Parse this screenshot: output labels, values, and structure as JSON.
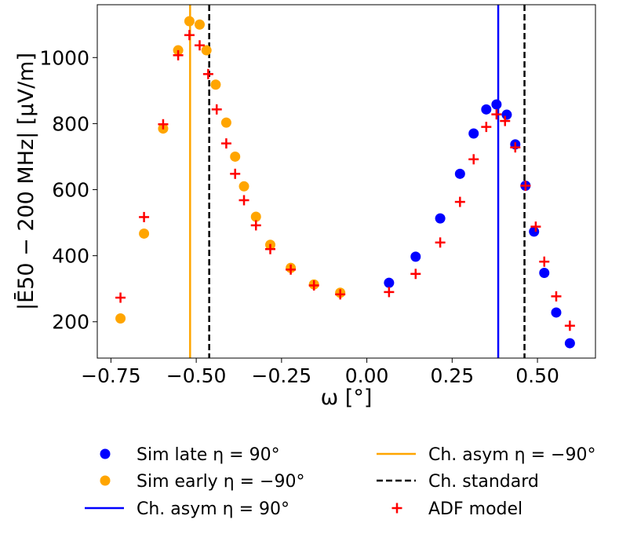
{
  "chart_data": {
    "type": "scatter",
    "xlabel": "ω [°]",
    "ylabel": "|Ē50 − 200 MHz| [µV/m]",
    "xlim": [
      -0.79,
      0.67
    ],
    "ylim": [
      90,
      1160
    ],
    "xticks": [
      -0.75,
      -0.5,
      -0.25,
      0.0,
      0.25,
      0.5
    ],
    "xtick_labels": [
      "−0.75",
      "−0.50",
      "−0.25",
      "0.00",
      "0.25",
      "0.50"
    ],
    "yticks": [
      200,
      400,
      600,
      800,
      1000
    ],
    "ytick_labels": [
      "200",
      "400",
      "600",
      "800",
      "1000"
    ],
    "legend_position": "bottom (below plot), two columns",
    "series": [
      {
        "name": "Sim late η = 90°",
        "legend_prefix": "Sim late ",
        "legend_eq": "η = 90°",
        "kind": "scatter-circle",
        "color": "#0000ff",
        "x": [
          0.065,
          0.143,
          0.215,
          0.273,
          0.313,
          0.35,
          0.38,
          0.41,
          0.435,
          0.465,
          0.49,
          0.52,
          0.555,
          0.595
        ],
        "y": [
          318,
          397,
          513,
          648,
          770,
          843,
          858,
          827,
          737,
          612,
          473,
          348,
          228,
          135
        ]
      },
      {
        "name": "Sim early η = −90°",
        "legend_prefix": "Sim early ",
        "legend_eq": "η = −90°",
        "kind": "scatter-circle",
        "color": "#ffa500",
        "x": [
          -0.722,
          -0.653,
          -0.597,
          -0.553,
          -0.52,
          -0.49,
          -0.47,
          -0.443,
          -0.412,
          -0.386,
          -0.36,
          -0.325,
          -0.283,
          -0.223,
          -0.155,
          -0.078
        ],
        "y": [
          210,
          467,
          785,
          1022,
          1110,
          1100,
          1022,
          918,
          803,
          700,
          610,
          518,
          433,
          363,
          313,
          288
        ]
      },
      {
        "name": "ADF model",
        "kind": "scatter-plus",
        "color": "#ff0000",
        "x": [
          -0.722,
          -0.653,
          -0.597,
          -0.553,
          -0.52,
          -0.49,
          -0.465,
          -0.44,
          -0.412,
          -0.386,
          -0.36,
          -0.325,
          -0.283,
          -0.223,
          -0.155,
          -0.078,
          0.065,
          0.143,
          0.215,
          0.273,
          0.313,
          0.35,
          0.38,
          0.405,
          0.435,
          0.465,
          0.495,
          0.52,
          0.555,
          0.595
        ],
        "y": [
          273,
          517,
          798,
          1007,
          1068,
          1037,
          950,
          843,
          740,
          648,
          568,
          492,
          420,
          358,
          310,
          283,
          290,
          345,
          440,
          563,
          692,
          790,
          828,
          808,
          728,
          612,
          488,
          382,
          277,
          188
        ]
      }
    ],
    "vlines": [
      {
        "name": "Ch. asym η = 90°",
        "legend_prefix": "Ch. asym  ",
        "legend_eq": "η = 90°",
        "x": 0.385,
        "color": "#0000ff",
        "style": "solid"
      },
      {
        "name": "Ch. asym η = −90°",
        "legend_prefix": "Ch. asym  ",
        "legend_eq": "η = −90°",
        "x": -0.518,
        "color": "#ffa500",
        "style": "solid"
      },
      {
        "name": "Ch. standard",
        "x_values": [
          -0.462,
          0.462
        ],
        "color": "#000000",
        "style": "dashed"
      }
    ],
    "legend": [
      {
        "label": "Sim late η = 90°",
        "ref": "series.0"
      },
      {
        "label": "Sim early η = −90°",
        "ref": "series.1"
      },
      {
        "label": "Ch. asym η = 90°",
        "ref": "vlines.0"
      },
      {
        "label": "Ch. asym η = −90°",
        "ref": "vlines.1"
      },
      {
        "label": "Ch. standard",
        "ref": "vlines.2"
      },
      {
        "label": "ADF model",
        "ref": "series.2"
      }
    ]
  }
}
